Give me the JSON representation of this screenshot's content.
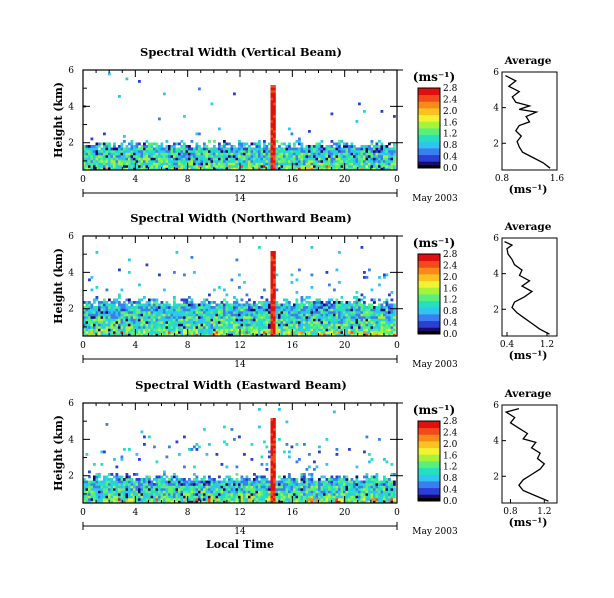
{
  "colormap": [
    "#1a0a6e",
    "#2a3fd6",
    "#3a7ef2",
    "#2ec5f0",
    "#24e0c0",
    "#58f07a",
    "#a8f23a",
    "#f2f230",
    "#f9c21e",
    "#f98a1a",
    "#f44a1a",
    "#e01010"
  ],
  "chart_data": [
    {
      "type": "heatmap",
      "title": "Spectral Width (Vertical Beam)",
      "xlabel": "",
      "ylabel": "Height (km)",
      "xlim": [
        0,
        24
      ],
      "ylim": [
        0.5,
        6
      ],
      "xticks": [
        "0",
        "4",
        "8",
        "12",
        "16",
        "20",
        "0"
      ],
      "yticks": [
        "2",
        "4",
        "6"
      ],
      "colorbar": {
        "unit": "(ms⁻¹)",
        "ticks": [
          "0.0",
          "0.4",
          "0.8",
          "1.2",
          "1.6",
          "2.0",
          "2.4",
          "2.8"
        ],
        "range": [
          0,
          2.8
        ]
      },
      "date_axis": {
        "day": "14",
        "month": "May 2003"
      },
      "profile": {
        "title": "Average",
        "xlabel": "(ms⁻¹)",
        "xticks": [
          "0.8",
          "1.6"
        ],
        "xlim": [
          0.8,
          1.6
        ],
        "ylim": [
          0.5,
          6
        ],
        "yticks": [
          "2",
          "4",
          "6"
        ],
        "points": [
          [
            1.5,
            0.6
          ],
          [
            1.4,
            0.9
          ],
          [
            1.25,
            1.2
          ],
          [
            1.1,
            1.5
          ],
          [
            1.05,
            1.8
          ],
          [
            1.02,
            2.1
          ],
          [
            1.08,
            2.4
          ],
          [
            1.0,
            2.7
          ],
          [
            1.05,
            3.0
          ],
          [
            1.2,
            3.2
          ],
          [
            1.15,
            3.5
          ],
          [
            1.3,
            3.75
          ],
          [
            1.05,
            3.9
          ],
          [
            1.2,
            4.1
          ],
          [
            1.0,
            4.3
          ],
          [
            0.95,
            4.6
          ],
          [
            1.05,
            4.9
          ],
          [
            0.9,
            5.2
          ],
          [
            1.0,
            5.5
          ],
          [
            0.85,
            5.8
          ]
        ]
      }
    },
    {
      "type": "heatmap",
      "title": "Spectral Width (Northward Beam)",
      "xlabel": "",
      "ylabel": "Height (km)",
      "xlim": [
        0,
        24
      ],
      "ylim": [
        0.5,
        6
      ],
      "xticks": [
        "0",
        "4",
        "8",
        "12",
        "16",
        "20",
        "0"
      ],
      "yticks": [
        "2",
        "4",
        "6"
      ],
      "colorbar": {
        "unit": "(ms⁻¹)",
        "ticks": [
          "0.0",
          "0.4",
          "0.8",
          "1.2",
          "1.6",
          "2.0",
          "2.4",
          "2.8"
        ],
        "range": [
          0,
          2.8
        ]
      },
      "date_axis": {
        "day": "14",
        "month": "May 2003"
      },
      "profile": {
        "title": "Average",
        "xlabel": "(ms⁻¹)",
        "xticks": [
          "0.4",
          "1.2"
        ],
        "xlim": [
          0.3,
          1.4
        ],
        "ylim": [
          0.5,
          6
        ],
        "yticks": [
          "2",
          "4",
          "6"
        ],
        "points": [
          [
            1.25,
            0.6
          ],
          [
            1.05,
            0.9
          ],
          [
            0.9,
            1.2
          ],
          [
            0.75,
            1.5
          ],
          [
            0.6,
            1.8
          ],
          [
            0.5,
            2.1
          ],
          [
            0.55,
            2.4
          ],
          [
            0.75,
            2.7
          ],
          [
            0.9,
            3.0
          ],
          [
            0.7,
            3.3
          ],
          [
            0.85,
            3.6
          ],
          [
            0.65,
            3.9
          ],
          [
            0.7,
            4.2
          ],
          [
            0.55,
            4.5
          ],
          [
            0.5,
            4.8
          ],
          [
            0.42,
            5.1
          ],
          [
            0.4,
            5.4
          ],
          [
            0.5,
            5.6
          ],
          [
            0.35,
            5.8
          ]
        ]
      }
    },
    {
      "type": "heatmap",
      "title": "Spectral Width (Eastward Beam)",
      "xlabel": "Local Time",
      "ylabel": "Height (km)",
      "xlim": [
        0,
        24
      ],
      "ylim": [
        0.5,
        6
      ],
      "xticks": [
        "0",
        "4",
        "8",
        "12",
        "16",
        "20",
        "0"
      ],
      "yticks": [
        "2",
        "4",
        "6"
      ],
      "colorbar": {
        "unit": "(ms⁻¹)",
        "ticks": [
          "0.0",
          "0.4",
          "0.8",
          "1.2",
          "1.6",
          "2.0",
          "2.4",
          "2.8"
        ],
        "range": [
          0,
          2.8
        ]
      },
      "date_axis": {
        "day": "14",
        "month": "May 2003"
      },
      "profile": {
        "title": "Average",
        "xlabel": "(ms⁻¹)",
        "xticks": [
          "0.8",
          "1.2"
        ],
        "xlim": [
          0.7,
          1.35
        ],
        "ylim": [
          0.5,
          6
        ],
        "yticks": [
          "2",
          "4",
          "6"
        ],
        "points": [
          [
            1.25,
            0.6
          ],
          [
            1.1,
            0.9
          ],
          [
            0.95,
            1.2
          ],
          [
            0.9,
            1.5
          ],
          [
            0.95,
            1.8
          ],
          [
            1.05,
            2.1
          ],
          [
            1.15,
            2.4
          ],
          [
            1.2,
            2.7
          ],
          [
            1.12,
            3.0
          ],
          [
            1.15,
            3.3
          ],
          [
            1.05,
            3.6
          ],
          [
            1.1,
            3.9
          ],
          [
            0.95,
            4.1
          ],
          [
            1.0,
            4.4
          ],
          [
            0.9,
            4.7
          ],
          [
            0.8,
            5.0
          ],
          [
            0.85,
            5.3
          ],
          [
            0.75,
            5.6
          ],
          [
            0.9,
            5.8
          ]
        ]
      }
    }
  ]
}
